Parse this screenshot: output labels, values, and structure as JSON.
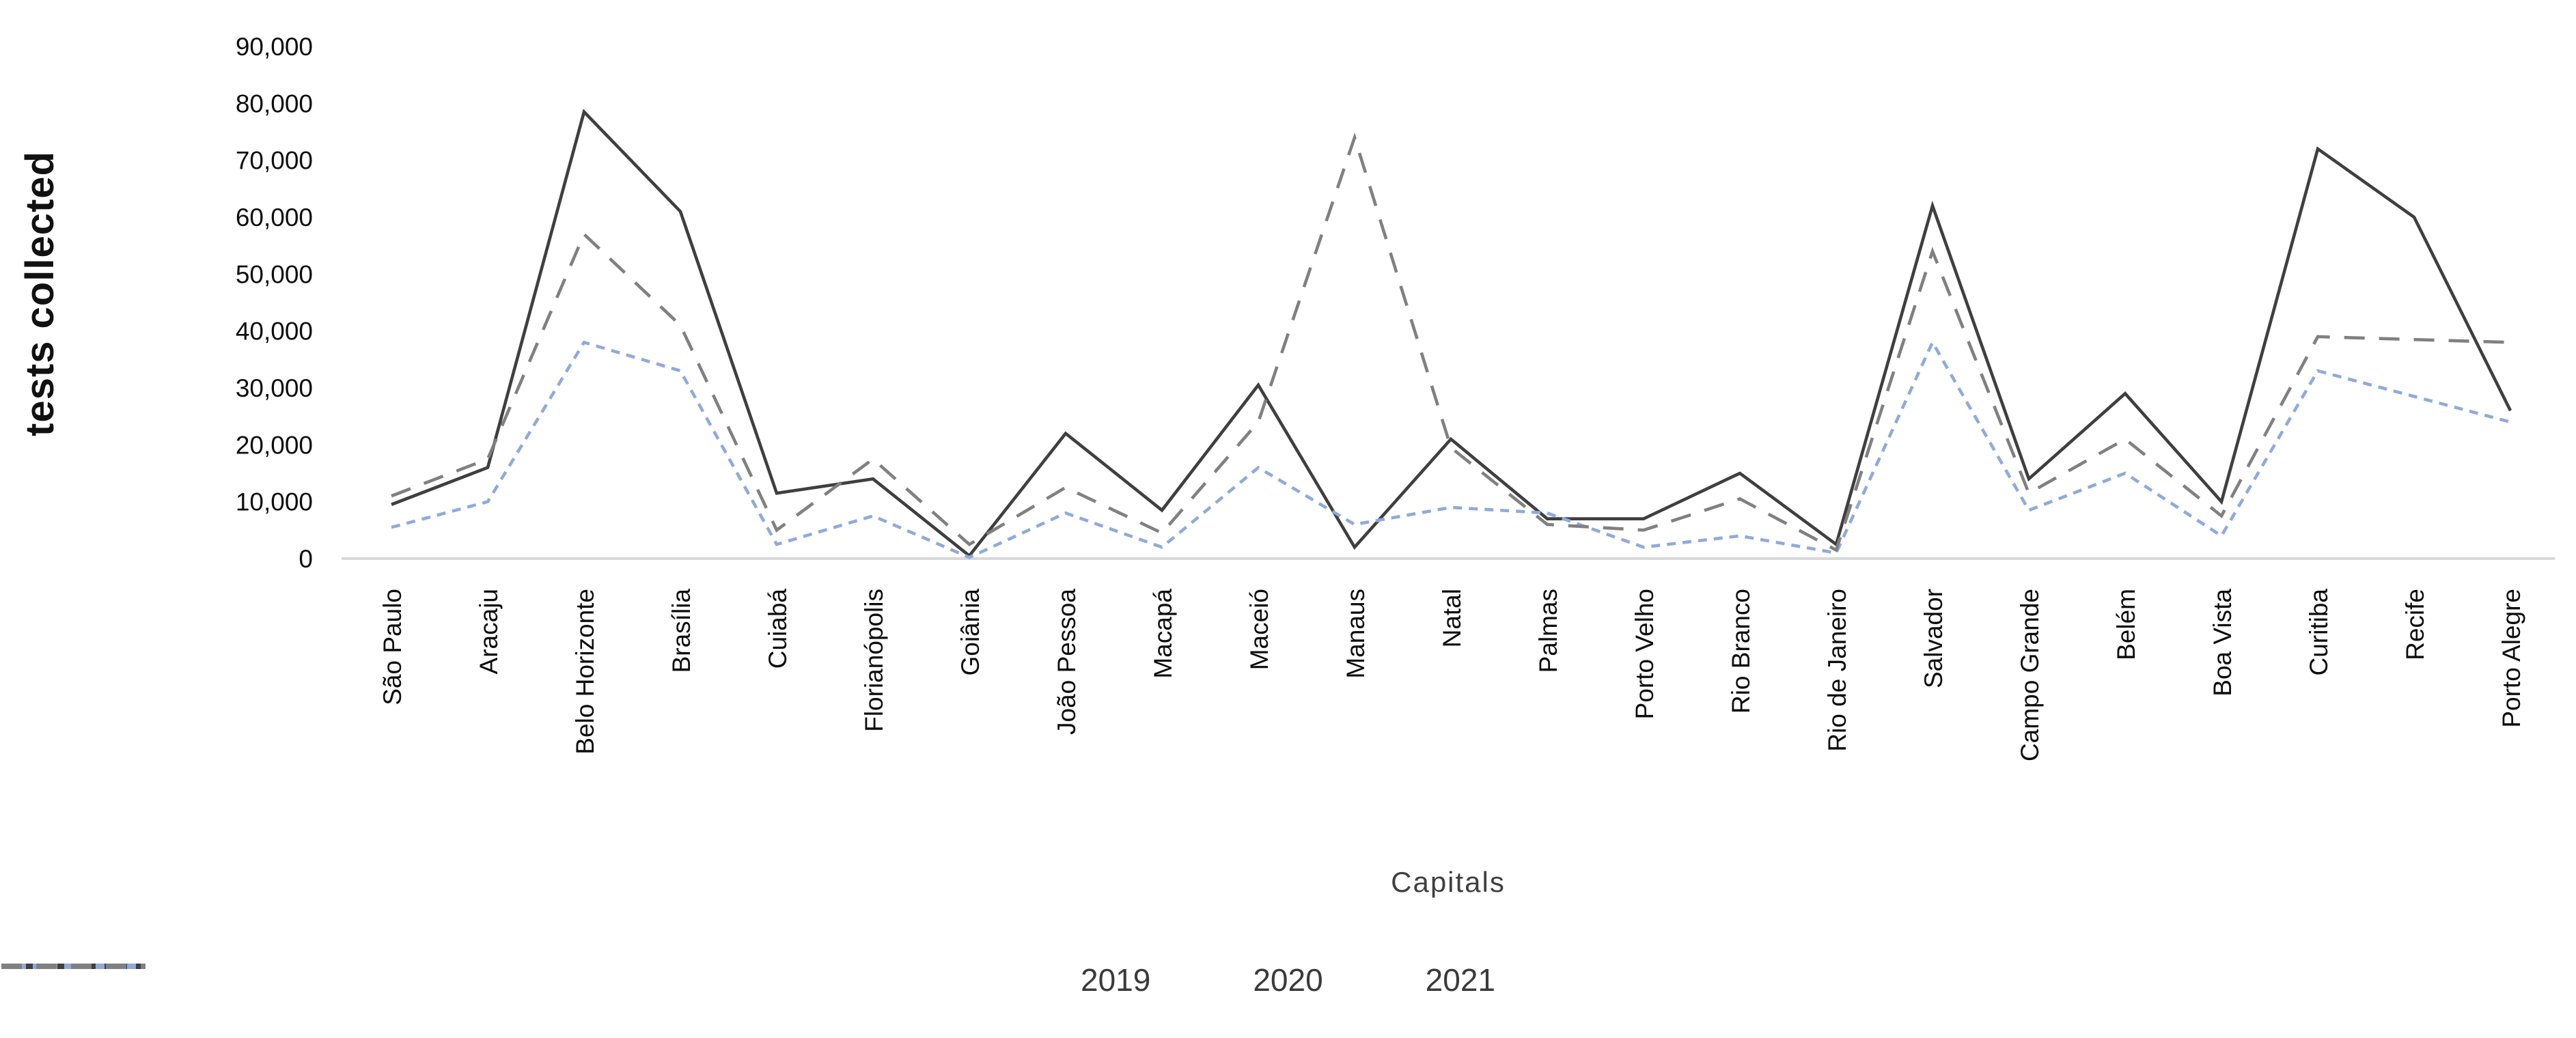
{
  "chart_data": {
    "type": "line",
    "title": "",
    "xlabel": "Capitals",
    "ylabel": "tests collected",
    "ylim": [
      0,
      90000
    ],
    "ytick_step": 10000,
    "ytick_labels": [
      "0",
      "10,000",
      "20,000",
      "30,000",
      "40,000",
      "50,000",
      "60,000",
      "70,000",
      "80,000",
      "90,000"
    ],
    "grid": false,
    "legend_position": "bottom",
    "categories": [
      "São Paulo",
      "Aracaju",
      "Belo Horizonte",
      "Brasília",
      "Cuiabá",
      "Florianópolis",
      "Goiânia",
      "João Pessoa",
      "Macapá",
      "Maceió",
      "Manaus",
      "Natal",
      "Palmas",
      "Porto Velho",
      "Rio Branco",
      "Rio de Janeiro",
      "Salvador",
      "Campo Grande",
      "Belém",
      "Boa Vista",
      "Curitiba",
      "Recife",
      "Porto Alegre"
    ],
    "series": [
      {
        "name": "2019",
        "style": "solid",
        "color": "#3f3f3f",
        "values": [
          9500,
          16000,
          78500,
          61000,
          11500,
          14000,
          500,
          22000,
          8500,
          30500,
          2000,
          21000,
          7000,
          7000,
          15000,
          2500,
          62000,
          14000,
          29000,
          10000,
          72000,
          60000,
          26000
        ]
      },
      {
        "name": "2020",
        "style": "dashed-short",
        "color": "#8faadc",
        "values": [
          5500,
          10000,
          38000,
          33000,
          2500,
          7500,
          200,
          8000,
          2000,
          16000,
          6000,
          9000,
          8000,
          2000,
          4000,
          1000,
          38000,
          8500,
          15000,
          4000,
          33000,
          28500,
          24000
        ]
      },
      {
        "name": "2021",
        "style": "dashed",
        "color": "#808080",
        "values": [
          11000,
          17500,
          57000,
          41000,
          5000,
          17500,
          2500,
          12500,
          4500,
          24000,
          74000,
          19500,
          6000,
          5000,
          10500,
          1500,
          54000,
          11500,
          21000,
          7500,
          39000,
          38500,
          38000
        ]
      }
    ]
  },
  "colors": {
    "axis_line": "#d9d9d9",
    "tick_text": "#0d0d0d",
    "category_text": "#0d0d0d",
    "axis_title_text": "#404040"
  }
}
